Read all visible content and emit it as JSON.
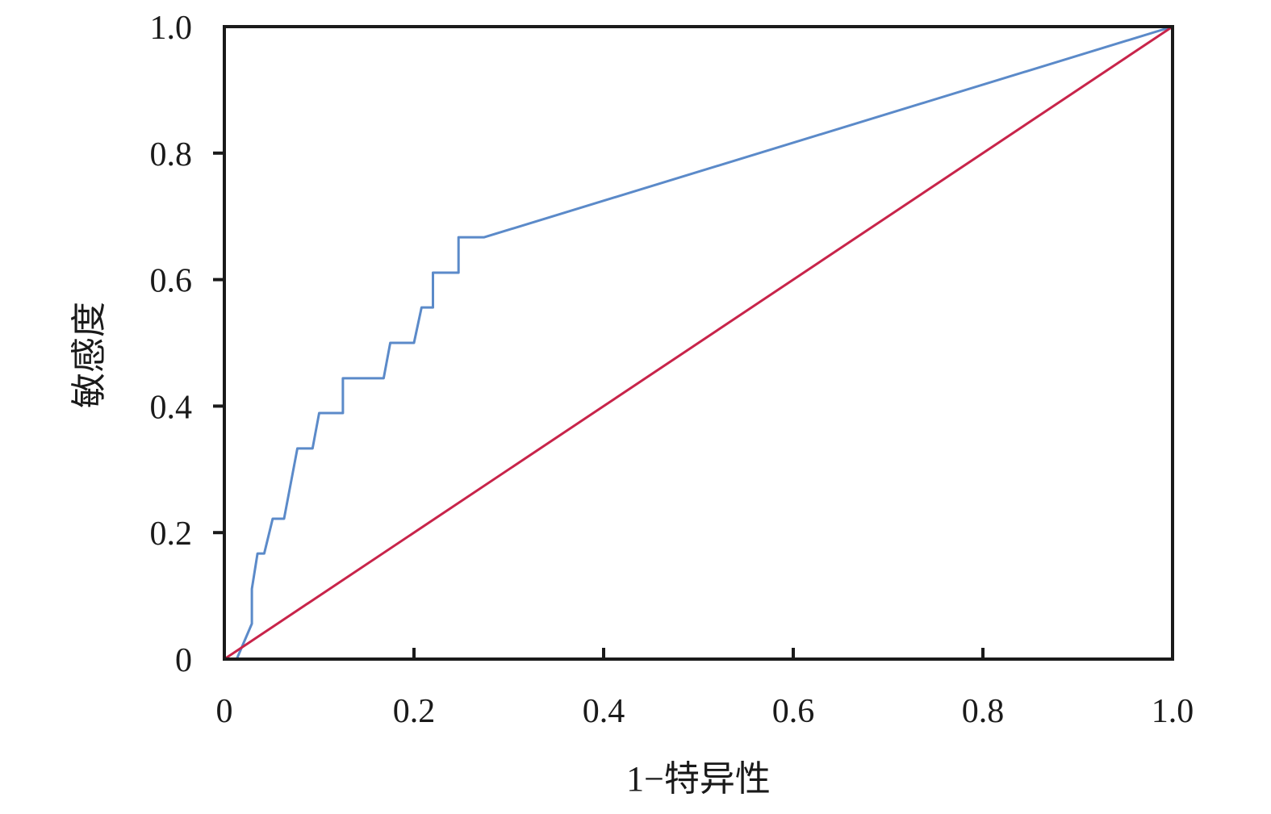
{
  "chart_data": {
    "type": "line",
    "title": "",
    "xlabel": "1−特异性",
    "ylabel": "敏感度",
    "xlim": [
      0,
      1
    ],
    "ylim": [
      0,
      1
    ],
    "x_ticks": [
      "0",
      "0.2",
      "0.4",
      "0.6",
      "0.8",
      "1.0"
    ],
    "y_ticks": [
      "0",
      "0.2",
      "0.4",
      "0.6",
      "0.8",
      "1.0"
    ],
    "grid": false,
    "legend": "none",
    "series": [
      {
        "color": "#5b8ac9",
        "x": [
          0.0,
          0.013,
          0.029,
          0.029,
          0.035,
          0.042,
          0.051,
          0.063,
          0.077,
          0.093,
          0.1,
          0.125,
          0.125,
          0.168,
          0.175,
          0.2,
          0.208,
          0.213,
          0.213,
          0.22,
          0.22,
          0.247,
          0.247,
          0.274,
          1.0
        ],
        "y": [
          0.0,
          0.0,
          0.056,
          0.111,
          0.167,
          0.167,
          0.222,
          0.222,
          0.333,
          0.333,
          0.389,
          0.389,
          0.444,
          0.444,
          0.5,
          0.5,
          0.556,
          0.556,
          0.556,
          0.556,
          0.611,
          0.611,
          0.667,
          0.667,
          1.0
        ]
      },
      {
        "color": "#c8244a",
        "x": [
          0,
          1
        ],
        "y": [
          0,
          1
        ]
      }
    ]
  }
}
